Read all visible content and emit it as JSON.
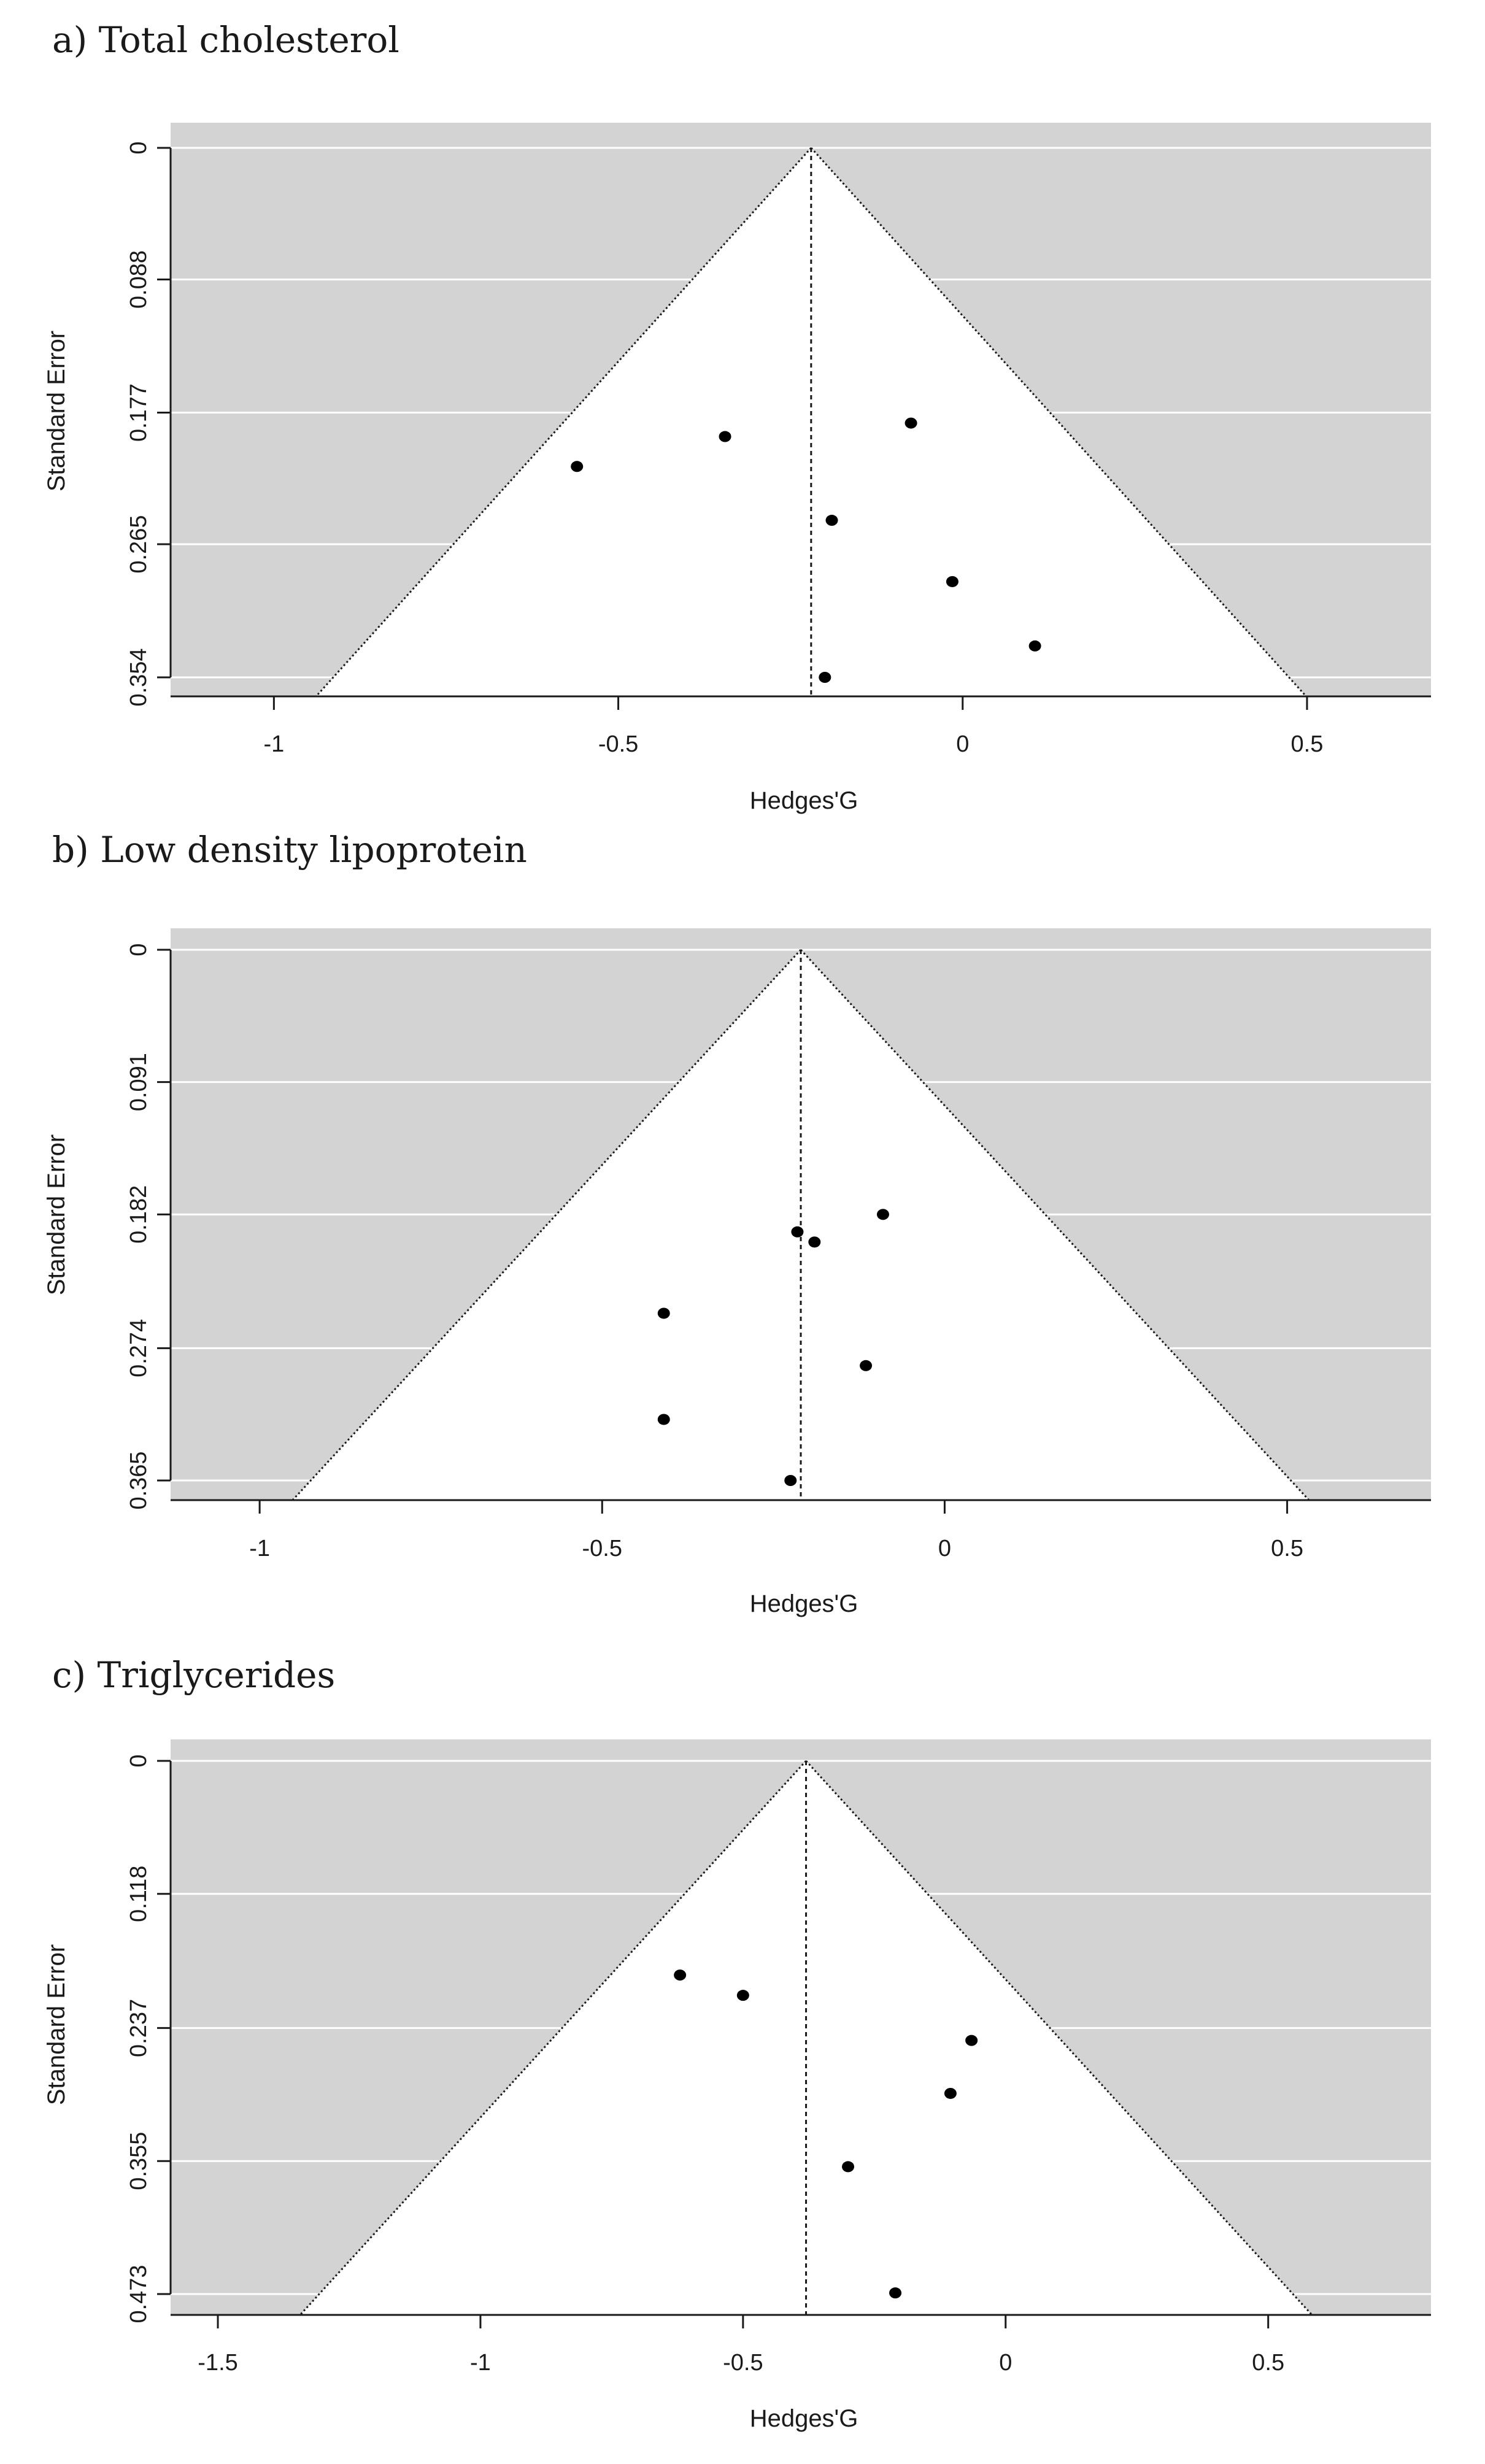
{
  "chart_data": [
    {
      "type": "scatter",
      "subtype": "funnel",
      "title": "a) Total cholesterol",
      "xlabel": "Hedges'G",
      "ylabel": "Standard Error",
      "xlim": [
        -1.15,
        0.68
      ],
      "ylim": [
        0.354,
        0
      ],
      "xticks": [
        -1,
        -0.5,
        0,
        0.5
      ],
      "xtick_labels": [
        "-1",
        "-0.5",
        "0",
        "0.5"
      ],
      "yticks": [
        0,
        0.088,
        0.177,
        0.265,
        0.354
      ],
      "ytick_labels": [
        "0",
        "0.088",
        "0.177",
        "0.265",
        "0.354"
      ],
      "pooled_effect": -0.22,
      "points": [
        {
          "x": -0.56,
          "y": 0.213
        },
        {
          "x": -0.345,
          "y": 0.193
        },
        {
          "x": -0.075,
          "y": 0.184
        },
        {
          "x": -0.19,
          "y": 0.249
        },
        {
          "x": -0.015,
          "y": 0.29
        },
        {
          "x": 0.105,
          "y": 0.333
        },
        {
          "x": -0.2,
          "y": 0.354
        }
      ]
    },
    {
      "type": "scatter",
      "subtype": "funnel",
      "title": "b) Low density lipoprotein",
      "xlabel": "Hedges'G",
      "ylabel": "Standard Error",
      "xlim": [
        -1.13,
        0.71
      ],
      "ylim": [
        0.365,
        0
      ],
      "xticks": [
        -1,
        -0.5,
        0,
        0.5
      ],
      "xtick_labels": [
        "-1",
        "-0.5",
        "0",
        "0.5"
      ],
      "yticks": [
        0,
        0.091,
        0.182,
        0.274,
        0.365
      ],
      "ytick_labels": [
        "0",
        "0.091",
        "0.182",
        "0.274",
        "0.365"
      ],
      "pooled_effect": -0.21,
      "points": [
        {
          "x": -0.09,
          "y": 0.182
        },
        {
          "x": -0.215,
          "y": 0.194
        },
        {
          "x": -0.19,
          "y": 0.201
        },
        {
          "x": -0.41,
          "y": 0.25
        },
        {
          "x": -0.115,
          "y": 0.286
        },
        {
          "x": -0.41,
          "y": 0.323
        },
        {
          "x": -0.225,
          "y": 0.365
        }
      ]
    },
    {
      "type": "scatter",
      "subtype": "funnel",
      "title": "c) Triglycerides",
      "xlabel": "Hedges'G",
      "ylabel": "Standard Error",
      "xlim": [
        -1.59,
        0.81
      ],
      "ylim": [
        0.473,
        0
      ],
      "xticks": [
        -1.5,
        -1,
        -0.5,
        0,
        0.5
      ],
      "xtick_labels": [
        "-1.5",
        "-1",
        "-0.5",
        "0",
        "0.5"
      ],
      "yticks": [
        0,
        0.118,
        0.237,
        0.355,
        0.473
      ],
      "ytick_labels": [
        "0",
        "0.118",
        "0.237",
        "0.355",
        "0.473"
      ],
      "pooled_effect": -0.38,
      "points": [
        {
          "x": -0.62,
          "y": 0.19
        },
        {
          "x": -0.5,
          "y": 0.208
        },
        {
          "x": -0.065,
          "y": 0.248
        },
        {
          "x": -0.105,
          "y": 0.295
        },
        {
          "x": -0.3,
          "y": 0.36
        },
        {
          "x": -0.21,
          "y": 0.472
        }
      ]
    }
  ]
}
